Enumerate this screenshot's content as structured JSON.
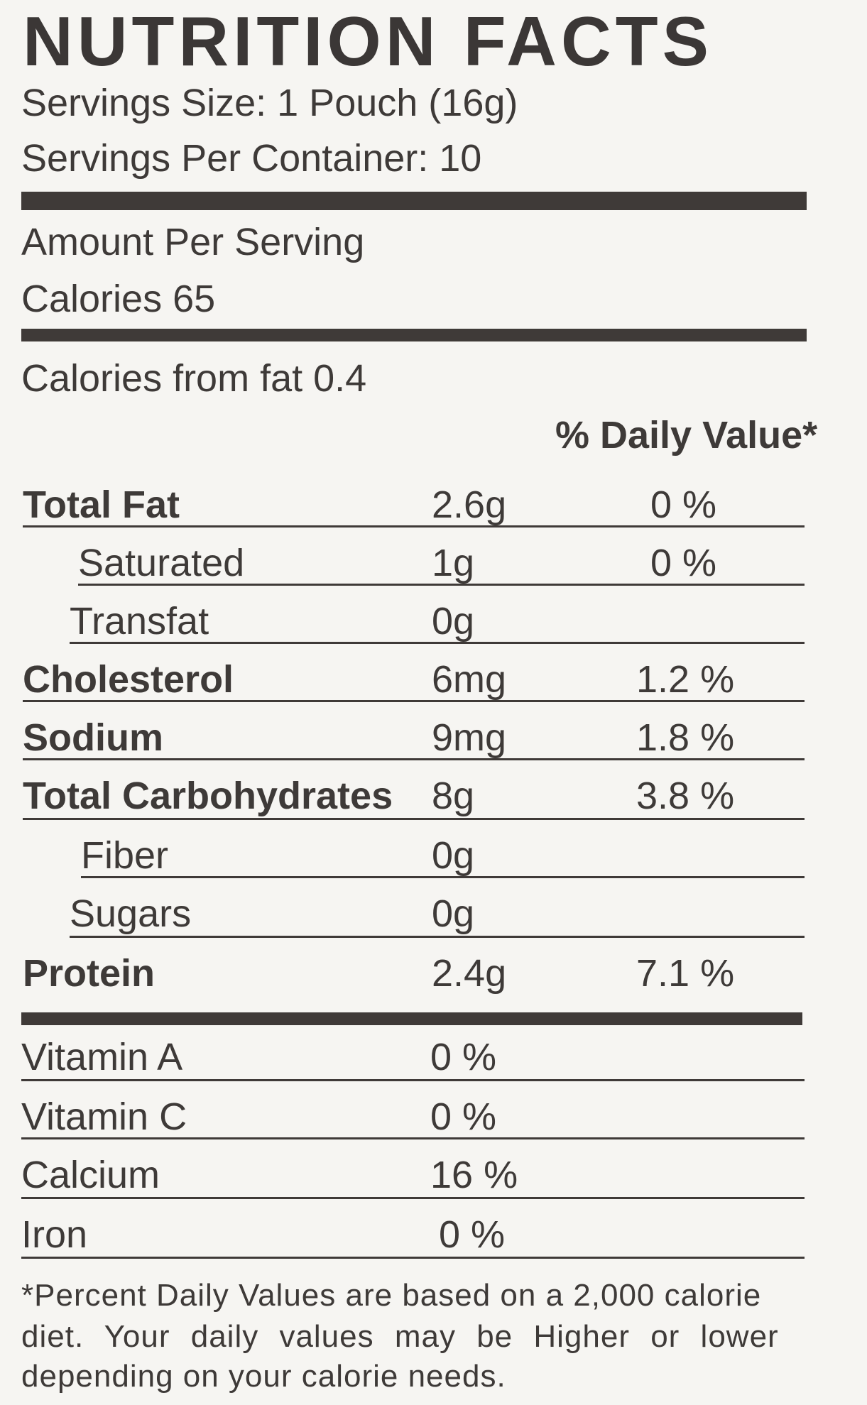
{
  "title": "NUTRITION FACTS",
  "serving_size": "Servings Size: 1 Pouch (16g)",
  "servings_per_container": "Servings Per Container: 10",
  "amount_per_serving": "Amount Per Serving",
  "calories": "Calories  65",
  "calories_from_fat": "Calories from fat 0.4",
  "daily_value_header": "% Daily Value*",
  "nutrients": [
    {
      "name": "Total Fat",
      "amount": "2.6g",
      "dv": "0 %"
    },
    {
      "name": "Saturated",
      "amount": "1g",
      "dv": "0 %"
    },
    {
      "name": "Transfat",
      "amount": "0g",
      "dv": ""
    },
    {
      "name": "Cholesterol",
      "amount": "6mg",
      "dv": "1.2 %"
    },
    {
      "name": "Sodium",
      "amount": "9mg",
      "dv": "1.8 %"
    },
    {
      "name": "Total Carbohydrates",
      "amount": "8g",
      "dv": "3.8 %"
    },
    {
      "name": "Fiber",
      "amount": "0g",
      "dv": ""
    },
    {
      "name": "Sugars",
      "amount": "0g",
      "dv": ""
    },
    {
      "name": "Protein",
      "amount": "2.4g",
      "dv": "7.1 %"
    }
  ],
  "vitamins": [
    {
      "name": "Vitamin A",
      "value": "0 %"
    },
    {
      "name": "Vitamin C",
      "value": "0 %"
    },
    {
      "name": "Calcium",
      "value": "16 %"
    },
    {
      "name": "Iron",
      "value": "0 %"
    }
  ],
  "footnote": [
    "*Percent Daily Values are based on a 2,000 calorie",
    "diet. Your daily values may be Higher or lower",
    "depending on your calorie needs."
  ]
}
